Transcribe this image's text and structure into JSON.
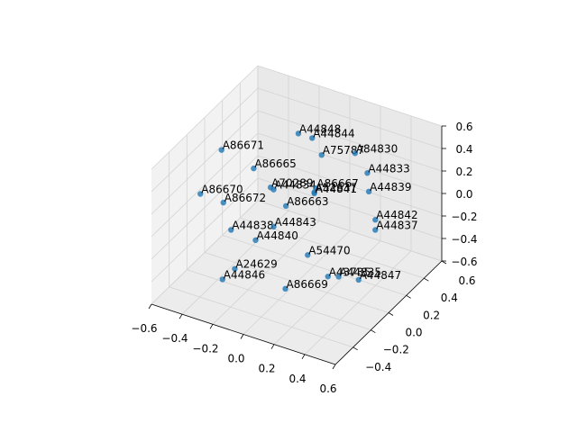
{
  "chart_data": {
    "type": "scatter3d",
    "labels": [
      "A44848",
      "A44844",
      "A75787",
      "A84830",
      "A86671",
      "A86665",
      "A44833",
      "A70289",
      "A44834",
      "A86667",
      "A52637",
      "A44841",
      "A44839",
      "A86670",
      "A86672",
      "A86663",
      "A44842",
      "A44837",
      "A44838",
      "A44843",
      "A44840",
      "A54470",
      "A24629",
      "A44846",
      "A43735",
      "A44835",
      "A44847",
      "A86669"
    ],
    "x": [
      -0.22,
      -0.13,
      -0.01,
      0.15,
      -0.49,
      -0.28,
      0.23,
      -0.17,
      -0.15,
      0.01,
      0.0,
      0.0,
      0.24,
      -0.57,
      -0.42,
      -0.07,
      0.34,
      0.34,
      -0.37,
      -0.15,
      -0.21,
      0.13,
      -0.23,
      -0.31,
      0.32,
      0.39,
      0.52,
      0.1
    ],
    "y": [
      0.4,
      0.4,
      0.3,
      0.4,
      0,
      0,
      0.4,
      0,
      0,
      0.2,
      0.2,
      0.2,
      0.4,
      -0.1,
      -0.1,
      0,
      0.3,
      0.3,
      -0.1,
      0,
      -0.1,
      -0.1,
      -0.3,
      -0.3,
      -0.2,
      -0.2,
      -0.2,
      -0.3
    ],
    "z": [
      0.32,
      0.32,
      0.3,
      0.31,
      0.36,
      0.29,
      0.17,
      0.17,
      0.16,
      0.09,
      0.05,
      0.04,
      0.01,
      0.01,
      0.0,
      0.05,
      -0.12,
      -0.21,
      -0.22,
      -0.17,
      -0.24,
      -0.22,
      -0.35,
      -0.48,
      -0.25,
      -0.22,
      -0.19,
      -0.38
    ],
    "color": "#1f77b4",
    "xlim": [
      -0.6,
      0.6
    ],
    "ylim": [
      -0.6,
      0.6
    ],
    "zlim": [
      -0.6,
      0.6
    ],
    "xticks": [
      {
        "value": -0.6,
        "label": "−0.6"
      },
      {
        "value": -0.4,
        "label": "−0.4"
      },
      {
        "value": -0.2,
        "label": "−0.2"
      },
      {
        "value": 0,
        "label": "0.0"
      },
      0.2,
      0.4,
      0.6
    ],
    "yticks": [
      {
        "value": -0.4,
        "label": "−0.4"
      },
      {
        "value": -0.2,
        "label": "−0.2"
      },
      {
        "value": 0,
        "label": "0.0"
      },
      0.2,
      0.4,
      0.6
    ],
    "zticks": [
      {
        "value": -0.6,
        "label": "−0.6"
      },
      {
        "value": -0.4,
        "label": "−0.4"
      },
      {
        "value": -0.2,
        "label": "−0.2"
      },
      {
        "value": 0,
        "label": "0.0"
      },
      0.2,
      0.4,
      0.6
    ],
    "grid": true
  }
}
